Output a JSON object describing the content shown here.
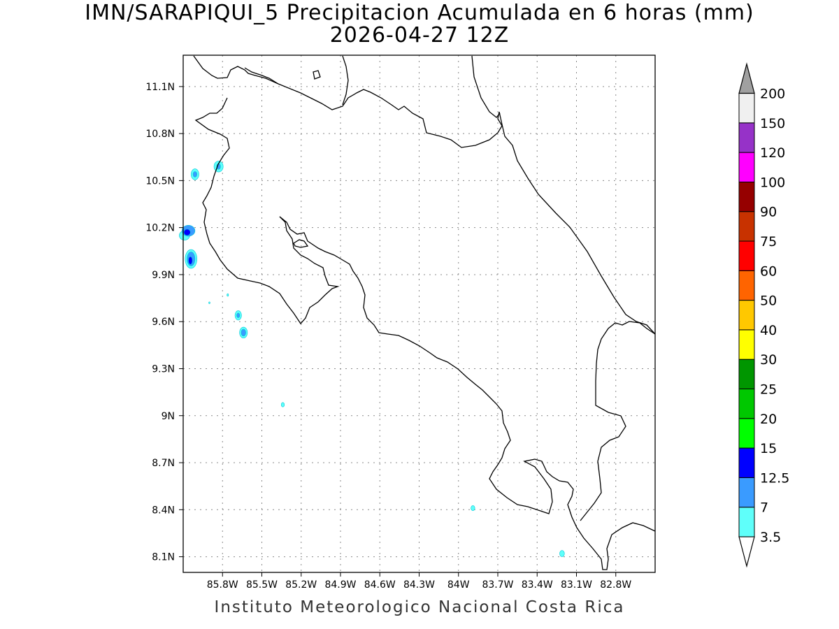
{
  "title": {
    "line1": "IMN/SARAPIQUI_5 Precipitacion Acumulada en 6 horas (mm)",
    "line2": "2026-04-27 12Z"
  },
  "footer": "Instituto Meteorologico Nacional Costa Rica",
  "map": {
    "lon_range": [
      -86.1,
      -82.5
    ],
    "lat_range": [
      8.0,
      11.3
    ],
    "lat_ticks": [
      {
        "value": 11.1,
        "label": "11.1N"
      },
      {
        "value": 10.8,
        "label": "10.8N"
      },
      {
        "value": 10.5,
        "label": "10.5N"
      },
      {
        "value": 10.2,
        "label": "10.2N"
      },
      {
        "value": 9.9,
        "label": "9.9N"
      },
      {
        "value": 9.6,
        "label": "9.6N"
      },
      {
        "value": 9.3,
        "label": "9.3N"
      },
      {
        "value": 9.0,
        "label": "9N"
      },
      {
        "value": 8.7,
        "label": "8.7N"
      },
      {
        "value": 8.4,
        "label": "8.4N"
      },
      {
        "value": 8.1,
        "label": "8.1N"
      }
    ],
    "lon_ticks": [
      {
        "value": -85.8,
        "label": "85.8W"
      },
      {
        "value": -85.5,
        "label": "85.5W"
      },
      {
        "value": -85.2,
        "label": "85.2W"
      },
      {
        "value": -84.9,
        "label": "84.9W"
      },
      {
        "value": -84.6,
        "label": "84.6W"
      },
      {
        "value": -84.3,
        "label": "84.3W"
      },
      {
        "value": -84.0,
        "label": "84W"
      },
      {
        "value": -83.7,
        "label": "83.7W"
      },
      {
        "value": -83.4,
        "label": "83.4W"
      },
      {
        "value": -83.1,
        "label": "83.1W"
      },
      {
        "value": -82.8,
        "label": "82.8W"
      }
    ],
    "grid": "dotted",
    "precip_cells": [
      {
        "lon": -86.09,
        "lat": 10.15,
        "rx": 0.04,
        "ry": 0.03,
        "level": 3.5
      },
      {
        "lon": -86.06,
        "lat": 10.18,
        "rx": 0.05,
        "ry": 0.035,
        "level": 7
      },
      {
        "lon": -86.07,
        "lat": 10.17,
        "rx": 0.025,
        "ry": 0.02,
        "level": 12.5
      },
      {
        "lon": -86.04,
        "lat": 10.0,
        "rx": 0.045,
        "ry": 0.06,
        "level": 3.5
      },
      {
        "lon": -86.04,
        "lat": 10.0,
        "rx": 0.03,
        "ry": 0.045,
        "level": 7
      },
      {
        "lon": -86.045,
        "lat": 9.99,
        "rx": 0.015,
        "ry": 0.025,
        "level": 12.5
      },
      {
        "lon": -86.01,
        "lat": 10.54,
        "rx": 0.03,
        "ry": 0.035,
        "level": 3.5
      },
      {
        "lon": -86.01,
        "lat": 10.54,
        "rx": 0.015,
        "ry": 0.018,
        "level": 7
      },
      {
        "lon": -85.83,
        "lat": 10.59,
        "rx": 0.035,
        "ry": 0.035,
        "level": 3.5
      },
      {
        "lon": -85.83,
        "lat": 10.59,
        "rx": 0.015,
        "ry": 0.018,
        "level": 7
      },
      {
        "lon": -85.68,
        "lat": 9.64,
        "rx": 0.025,
        "ry": 0.03,
        "level": 3.5
      },
      {
        "lon": -85.68,
        "lat": 9.64,
        "rx": 0.012,
        "ry": 0.015,
        "level": 7
      },
      {
        "lon": -85.64,
        "lat": 9.53,
        "rx": 0.03,
        "ry": 0.035,
        "level": 3.5
      },
      {
        "lon": -85.64,
        "lat": 9.53,
        "rx": 0.018,
        "ry": 0.022,
        "level": 7
      },
      {
        "lon": -85.76,
        "lat": 9.77,
        "rx": 0.006,
        "ry": 0.008,
        "level": 3.5
      },
      {
        "lon": -85.9,
        "lat": 9.72,
        "rx": 0.005,
        "ry": 0.006,
        "level": 3.5
      },
      {
        "lon": -85.34,
        "lat": 9.07,
        "rx": 0.012,
        "ry": 0.014,
        "level": 3.5
      },
      {
        "lon": -83.89,
        "lat": 8.41,
        "rx": 0.015,
        "ry": 0.016,
        "level": 3.5
      },
      {
        "lon": -83.21,
        "lat": 8.12,
        "rx": 0.018,
        "ry": 0.02,
        "level": 3.5
      }
    ]
  },
  "colorbar": {
    "levels": [
      {
        "label": "3.5",
        "color": "#5ffffa"
      },
      {
        "label": "7",
        "color": "#3a9bff"
      },
      {
        "label": "12.5",
        "color": "#0000ff"
      },
      {
        "label": "15",
        "color": "#00ff00"
      },
      {
        "label": "20",
        "color": "#00c800"
      },
      {
        "label": "25",
        "color": "#009600"
      },
      {
        "label": "30",
        "color": "#ffff00"
      },
      {
        "label": "40",
        "color": "#ffc800"
      },
      {
        "label": "50",
        "color": "#ff6400"
      },
      {
        "label": "60",
        "color": "#ff0000"
      },
      {
        "label": "75",
        "color": "#c83200"
      },
      {
        "label": "90",
        "color": "#960000"
      },
      {
        "label": "100",
        "color": "#ff00ff"
      },
      {
        "label": "120",
        "color": "#9632c8"
      },
      {
        "label": "150",
        "color": "#f0f0f0"
      },
      {
        "label": "200",
        "color": "#a0a0a0"
      }
    ]
  }
}
